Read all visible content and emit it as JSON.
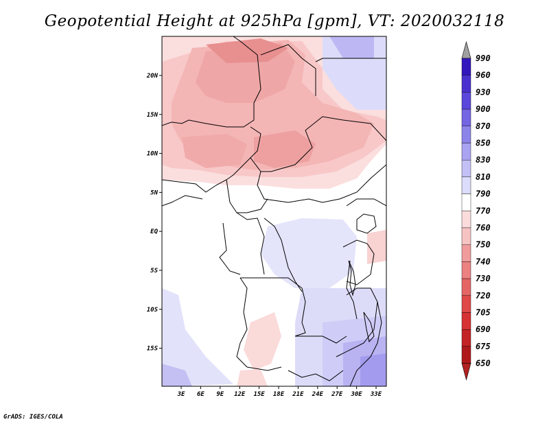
{
  "title": "Geopotential Height at 925hPa [gpm], VT: 2020032118",
  "credit": "GrADS: IGES/COLA",
  "map": {
    "variable": "Geopotential Height",
    "level": "925hPa",
    "units": "gpm",
    "valid_time": "2020032118",
    "lon_ticks": [
      "3E",
      "6E",
      "9E",
      "12E",
      "15E",
      "18E",
      "21E",
      "24E",
      "27E",
      "30E",
      "33E"
    ],
    "lat_ticks": [
      "20N",
      "15N",
      "10N",
      "5N",
      "EQ",
      "5S",
      "10S",
      "15S"
    ]
  },
  "colorbar": {
    "levels": [
      "650",
      "675",
      "690",
      "705",
      "720",
      "730",
      "740",
      "750",
      "760",
      "770",
      "790",
      "810",
      "830",
      "850",
      "870",
      "900",
      "930",
      "960",
      "990"
    ],
    "colors": {
      "low": "#b22222",
      "mid_red": "#e05050",
      "pale_red": "#f6caca",
      "white": "#ffffff",
      "pale_blue": "#d8d8f8",
      "mid_blue": "#7a6ce8",
      "high": "#1e0ea0",
      "over": "#a0a0a0",
      "under": "#b22222"
    }
  }
}
